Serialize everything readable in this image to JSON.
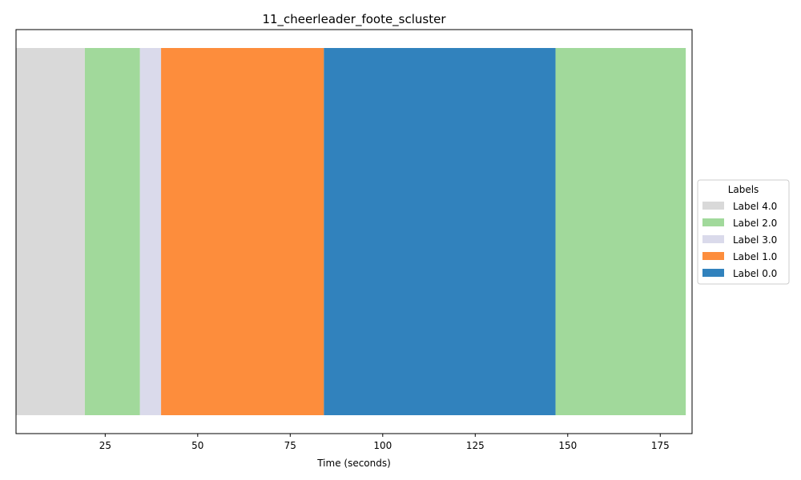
{
  "chart_data": {
    "type": "bar",
    "orientation": "horizontal-timeline",
    "title": "11_cheerleader_foote_scluster",
    "xlabel": "Time (seconds)",
    "ylabel": "",
    "xlim": [
      0.9,
      183.6
    ],
    "xticks": [
      25,
      50,
      75,
      100,
      125,
      150,
      175
    ],
    "xtick_labels": [
      "25",
      "50",
      "75",
      "100",
      "125",
      "150",
      "175"
    ],
    "grid": false,
    "segments": [
      {
        "label": "Label 4.0",
        "start": 0.9,
        "end": 19.5
      },
      {
        "label": "Label 2.0",
        "start": 19.5,
        "end": 34.4
      },
      {
        "label": "Label 3.0",
        "start": 34.4,
        "end": 40.1
      },
      {
        "label": "Label 1.0",
        "start": 40.1,
        "end": 84.1
      },
      {
        "label": "Label 0.0",
        "start": 84.1,
        "end": 146.7
      },
      {
        "label": "Label 2.0",
        "start": 146.7,
        "end": 181.9
      }
    ],
    "legend": {
      "title": "Labels",
      "placement": "center-right outside",
      "entries": [
        {
          "label": "Label 4.0",
          "color": "#d9d9d9"
        },
        {
          "label": "Label 2.0",
          "color": "#a1d99b"
        },
        {
          "label": "Label 3.0",
          "color": "#dadaeb"
        },
        {
          "label": "Label 1.0",
          "color": "#fd8d3c"
        },
        {
          "label": "Label 0.0",
          "color": "#3182bd"
        }
      ]
    }
  }
}
